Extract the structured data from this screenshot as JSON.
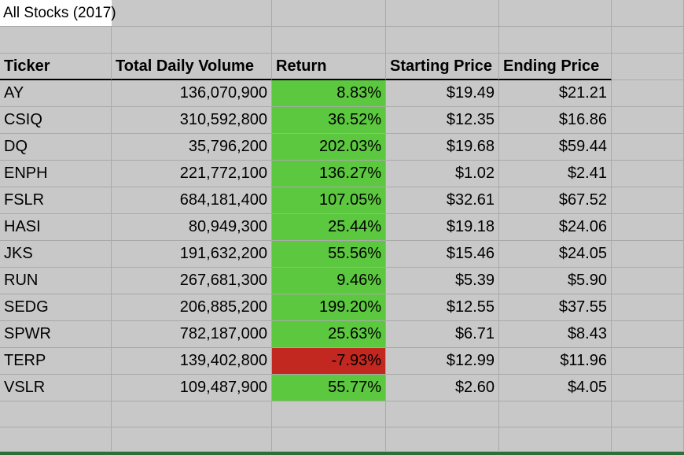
{
  "title": "All Stocks (2017)",
  "headers": {
    "ticker": "Ticker",
    "volume": "Total Daily Volume",
    "return": "Return",
    "start": "Starting Price",
    "end": "Ending Price"
  },
  "colors": {
    "positive": "#5cc83f",
    "negative": "#c2281f",
    "grid": "#a9a9a9",
    "background": "#c8c8c8"
  },
  "rows": [
    {
      "ticker": "AY",
      "volume": "136,070,900",
      "return": "8.83%",
      "start": "$19.49",
      "end": "$21.21",
      "positive": true
    },
    {
      "ticker": "CSIQ",
      "volume": "310,592,800",
      "return": "36.52%",
      "start": "$12.35",
      "end": "$16.86",
      "positive": true
    },
    {
      "ticker": "DQ",
      "volume": "35,796,200",
      "return": "202.03%",
      "start": "$19.68",
      "end": "$59.44",
      "positive": true
    },
    {
      "ticker": "ENPH",
      "volume": "221,772,100",
      "return": "136.27%",
      "start": "$1.02",
      "end": "$2.41",
      "positive": true
    },
    {
      "ticker": "FSLR",
      "volume": "684,181,400",
      "return": "107.05%",
      "start": "$32.61",
      "end": "$67.52",
      "positive": true
    },
    {
      "ticker": "HASI",
      "volume": "80,949,300",
      "return": "25.44%",
      "start": "$19.18",
      "end": "$24.06",
      "positive": true
    },
    {
      "ticker": "JKS",
      "volume": "191,632,200",
      "return": "55.56%",
      "start": "$15.46",
      "end": "$24.05",
      "positive": true
    },
    {
      "ticker": "RUN",
      "volume": "267,681,300",
      "return": "9.46%",
      "start": "$5.39",
      "end": "$5.90",
      "positive": true
    },
    {
      "ticker": "SEDG",
      "volume": "206,885,200",
      "return": "199.20%",
      "start": "$12.55",
      "end": "$37.55",
      "positive": true
    },
    {
      "ticker": "SPWR",
      "volume": "782,187,000",
      "return": "25.63%",
      "start": "$6.71",
      "end": "$8.43",
      "positive": true
    },
    {
      "ticker": "TERP",
      "volume": "139,402,800",
      "return": "-7.93%",
      "start": "$12.99",
      "end": "$11.96",
      "positive": false
    },
    {
      "ticker": "VSLR",
      "volume": "109,487,900",
      "return": "55.77%",
      "start": "$2.60",
      "end": "$4.05",
      "positive": true
    }
  ]
}
